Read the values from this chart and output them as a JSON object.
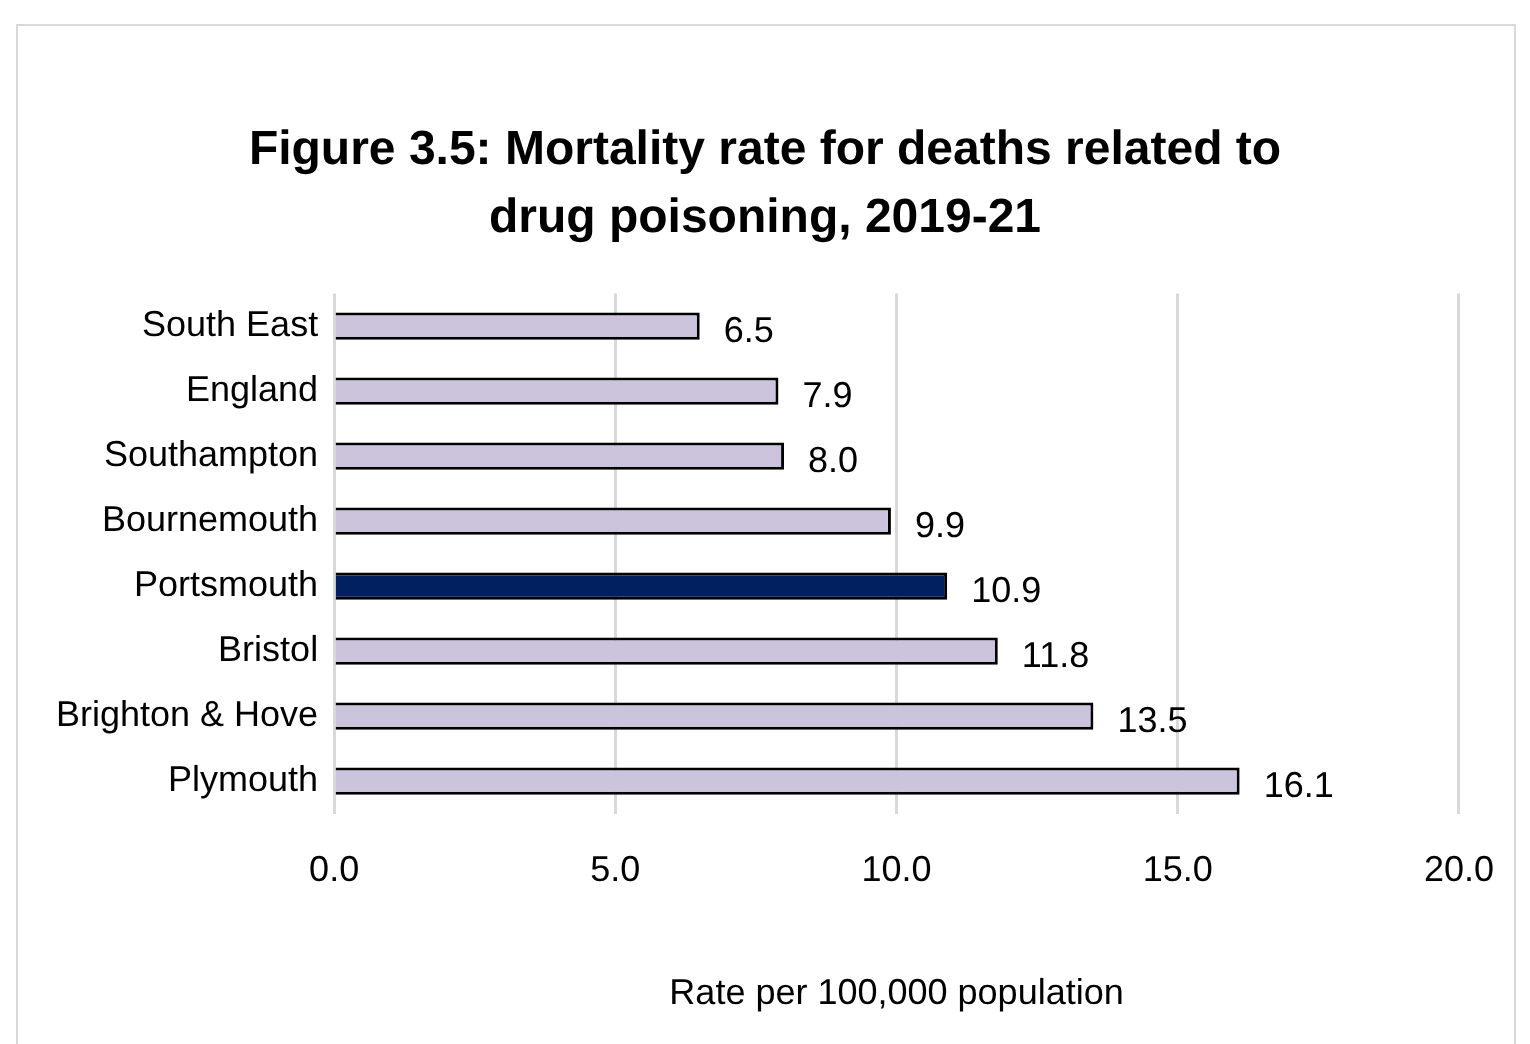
{
  "chart_data": {
    "type": "bar",
    "orientation": "horizontal",
    "title": "Figure 3.5: Mortality rate for deaths related to drug poisoning, 2019-21",
    "xlabel": "Rate per 100,000 population",
    "categories": [
      "South East",
      "England",
      "Southampton",
      "Bournemouth",
      "Portsmouth",
      "Bristol",
      "Brighton & Hove",
      "Plymouth"
    ],
    "values": [
      6.5,
      7.9,
      8.0,
      9.9,
      10.9,
      11.8,
      13.5,
      16.1
    ],
    "value_labels": [
      "6.5",
      "7.9",
      "8.0",
      "9.9",
      "10.9",
      "11.8",
      "13.5",
      "16.1"
    ],
    "colors": [
      "#ccc3dc",
      "#ccc3dc",
      "#ccc3dc",
      "#ccc3dc",
      "#002060",
      "#ccc3dc",
      "#ccc3dc",
      "#ccc3dc"
    ],
    "xlim": [
      0,
      20
    ],
    "xticks": [
      {
        "value": 0,
        "label": "0.0"
      },
      {
        "value": 5,
        "label": "5.0"
      },
      {
        "value": 10,
        "label": "10.0"
      },
      {
        "value": 15,
        "label": "15.0"
      },
      {
        "value": 20,
        "label": "20.0"
      }
    ],
    "grid": "x"
  }
}
